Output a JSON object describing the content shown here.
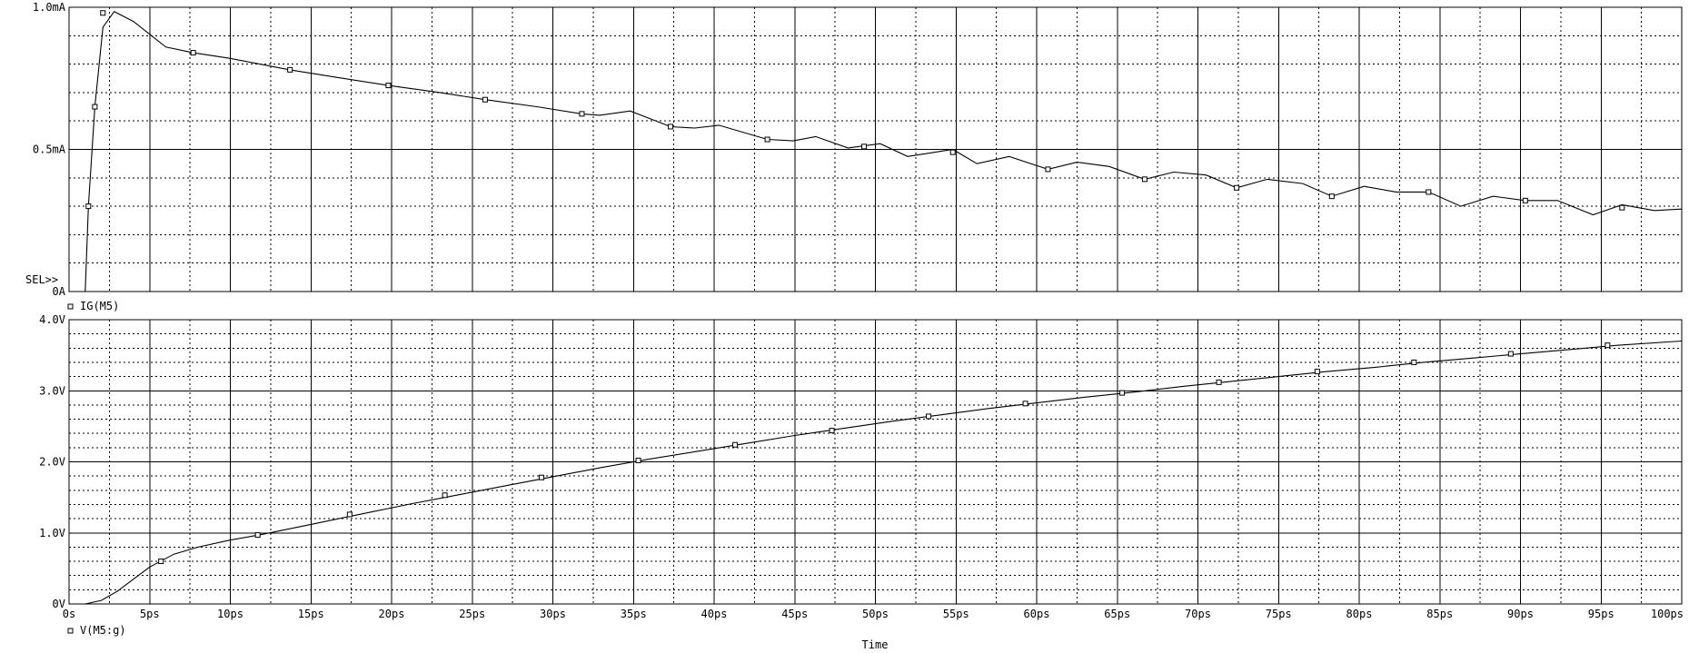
{
  "chart_data": [
    {
      "type": "line",
      "selector": "SEL>>",
      "x_unit": "ps",
      "xlim": [
        0,
        100
      ],
      "ylim": [
        0,
        1.0
      ],
      "y_ticks": [
        {
          "value": 1.0,
          "label": "1.0mA"
        },
        {
          "value": 0.5,
          "label": "0.5mA"
        },
        {
          "value": 0,
          "label": "0A"
        }
      ],
      "grid": true,
      "series": [
        {
          "name": "IG(M5)",
          "marker": "open-square",
          "x": [
            1.0,
            1.2,
            1.6,
            2.1,
            2.8,
            4.0,
            6.0,
            7.7,
            10.0,
            13.7,
            17.0,
            19.8,
            23.0,
            25.8,
            29.0,
            31.8,
            32.9,
            34.8,
            37.3,
            38.8,
            40.3,
            43.3,
            44.9,
            46.3,
            48.3,
            50.3,
            52.0,
            54.8,
            56.3,
            58.3,
            60.7,
            62.5,
            64.5,
            66.7,
            68.5,
            70.5,
            72.4,
            74.3,
            76.5,
            78.3,
            80.3,
            82.3,
            84.3,
            86.3,
            88.3,
            90.3,
            92.3,
            94.5,
            96.3,
            98.3,
            100.0
          ],
          "y": [
            0.0,
            0.3,
            0.65,
            0.93,
            0.985,
            0.95,
            0.86,
            0.84,
            0.82,
            0.78,
            0.75,
            0.725,
            0.7,
            0.675,
            0.65,
            0.625,
            0.62,
            0.635,
            0.58,
            0.575,
            0.585,
            0.535,
            0.53,
            0.545,
            0.505,
            0.52,
            0.475,
            0.5,
            0.45,
            0.475,
            0.43,
            0.455,
            0.44,
            0.395,
            0.42,
            0.41,
            0.365,
            0.395,
            0.38,
            0.335,
            0.37,
            0.35,
            0.35,
            0.3,
            0.335,
            0.32,
            0.32,
            0.27,
            0.305,
            0.285,
            0.29
          ],
          "marker_points": [
            [
              1.2,
              0.3
            ],
            [
              1.6,
              0.65
            ],
            [
              2.1,
              0.98
            ],
            [
              7.7,
              0.84
            ],
            [
              13.7,
              0.78
            ],
            [
              19.8,
              0.725
            ],
            [
              25.8,
              0.675
            ],
            [
              31.8,
              0.625
            ],
            [
              37.3,
              0.58
            ],
            [
              43.3,
              0.535
            ],
            [
              49.3,
              0.51
            ],
            [
              54.8,
              0.49
            ],
            [
              60.7,
              0.43
            ],
            [
              66.7,
              0.395
            ],
            [
              72.4,
              0.365
            ],
            [
              78.3,
              0.335
            ],
            [
              84.3,
              0.35
            ],
            [
              90.3,
              0.32
            ],
            [
              96.3,
              0.295
            ]
          ]
        }
      ]
    },
    {
      "type": "line",
      "x_unit": "ps",
      "xlim": [
        0,
        100
      ],
      "ylim": [
        0,
        4.0
      ],
      "y_ticks": [
        {
          "value": 4.0,
          "label": "4.0V"
        },
        {
          "value": 3.0,
          "label": "3.0V"
        },
        {
          "value": 2.0,
          "label": "2.0V"
        },
        {
          "value": 1.0,
          "label": "1.0V"
        },
        {
          "value": 0,
          "label": "0V"
        }
      ],
      "x_ticks": [
        {
          "value": 0,
          "label": "0s"
        },
        {
          "value": 5,
          "label": "5ps"
        },
        {
          "value": 10,
          "label": "10ps"
        },
        {
          "value": 15,
          "label": "15ps"
        },
        {
          "value": 20,
          "label": "20ps"
        },
        {
          "value": 25,
          "label": "25ps"
        },
        {
          "value": 30,
          "label": "30ps"
        },
        {
          "value": 35,
          "label": "35ps"
        },
        {
          "value": 40,
          "label": "40ps"
        },
        {
          "value": 45,
          "label": "45ps"
        },
        {
          "value": 50,
          "label": "50ps"
        },
        {
          "value": 55,
          "label": "55ps"
        },
        {
          "value": 60,
          "label": "60ps"
        },
        {
          "value": 65,
          "label": "65ps"
        },
        {
          "value": 70,
          "label": "70ps"
        },
        {
          "value": 75,
          "label": "75ps"
        },
        {
          "value": 80,
          "label": "80ps"
        },
        {
          "value": 85,
          "label": "85ps"
        },
        {
          "value": 90,
          "label": "90ps"
        },
        {
          "value": 95,
          "label": "95ps"
        },
        {
          "value": 100,
          "label": "100ps"
        }
      ],
      "xlabel": "Time",
      "grid": true,
      "series": [
        {
          "name": "V(M5:g)",
          "marker": "open-square",
          "x": [
            1.0,
            2.0,
            3.0,
            4.0,
            5.0,
            6.5,
            8.0,
            10.0,
            12.0,
            15.0,
            18.0,
            21.0,
            24.0,
            27.0,
            30.0,
            33.0,
            36.0,
            39.0,
            42.0,
            45.0,
            48.0,
            51.0,
            54.0,
            57.0,
            60.0,
            63.0,
            66.0,
            69.0,
            72.0,
            75.0,
            78.0,
            81.0,
            84.0,
            87.0,
            90.0,
            93.0,
            96.0,
            100.0
          ],
          "y": [
            0.0,
            0.05,
            0.18,
            0.35,
            0.52,
            0.7,
            0.8,
            0.9,
            0.98,
            1.12,
            1.26,
            1.4,
            1.53,
            1.66,
            1.79,
            1.92,
            2.04,
            2.15,
            2.26,
            2.37,
            2.47,
            2.57,
            2.66,
            2.75,
            2.83,
            2.91,
            2.98,
            3.06,
            3.13,
            3.2,
            3.27,
            3.33,
            3.4,
            3.46,
            3.52,
            3.58,
            3.64,
            3.7
          ],
          "marker_points": [
            [
              5.7,
              0.6
            ],
            [
              11.7,
              0.97
            ],
            [
              17.4,
              1.26
            ],
            [
              23.3,
              1.53
            ],
            [
              29.3,
              1.78
            ],
            [
              35.3,
              2.02
            ],
            [
              41.3,
              2.24
            ],
            [
              47.3,
              2.44
            ],
            [
              53.3,
              2.64
            ],
            [
              59.3,
              2.82
            ],
            [
              65.3,
              2.97
            ],
            [
              71.3,
              3.12
            ],
            [
              77.4,
              3.27
            ],
            [
              83.4,
              3.4
            ],
            [
              89.4,
              3.52
            ],
            [
              95.4,
              3.64
            ]
          ]
        }
      ]
    }
  ]
}
